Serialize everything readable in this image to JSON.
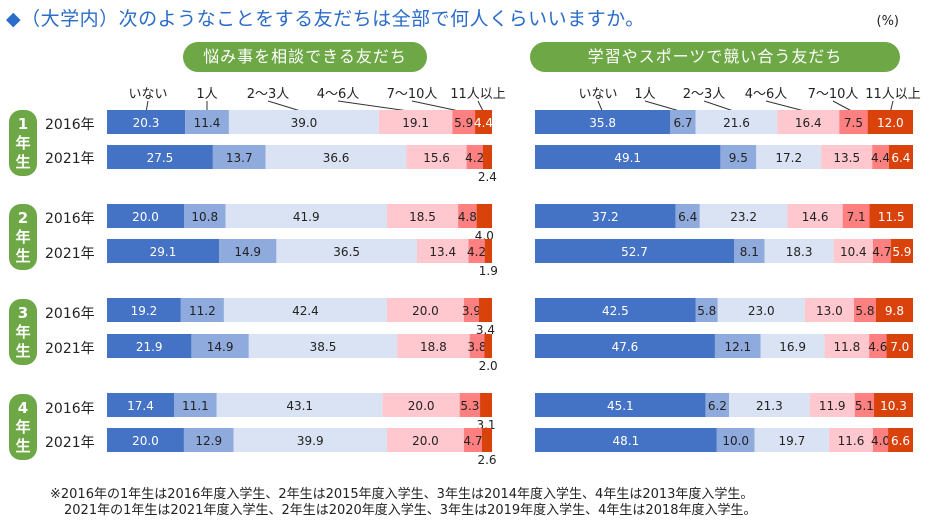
{
  "title": "◆（大学内）次のようなことをする友だちは全部で何人くらいいますか。",
  "unit": "(%)",
  "grades": [
    {
      "chars": [
        "1",
        "年",
        "生"
      ]
    },
    {
      "chars": [
        "2",
        "年",
        "生"
      ]
    },
    {
      "chars": [
        "3",
        "年",
        "生"
      ]
    },
    {
      "chars": [
        "4",
        "年",
        "生"
      ]
    }
  ],
  "years": [
    "2016年",
    "2021年"
  ],
  "category_labels": [
    "いない",
    "1人",
    "2～3人",
    "4～6人",
    "7～10人",
    "11人以上"
  ],
  "colors": [
    "#4472c4",
    "#8faadc",
    "#dae3f3",
    "#ffc7ce",
    "#ff8080",
    "#d9420b"
  ],
  "chart_data": [
    {
      "type": "bar",
      "orientation": "horizontal",
      "stacked": true,
      "title": "悩み事を相談できる友だち",
      "categories": [
        "いない",
        "1人",
        "2～3人",
        "4～6人",
        "7～10人",
        "11人以上"
      ],
      "rows": [
        {
          "grade": "1年生",
          "year": "2016年",
          "values": [
            20.3,
            11.4,
            39.0,
            19.1,
            5.9,
            4.4
          ]
        },
        {
          "grade": "1年生",
          "year": "2021年",
          "values": [
            27.5,
            13.7,
            36.6,
            15.6,
            4.2,
            2.4
          ]
        },
        {
          "grade": "2年生",
          "year": "2016年",
          "values": [
            20.0,
            10.8,
            41.9,
            18.5,
            4.8,
            4.0
          ]
        },
        {
          "grade": "2年生",
          "year": "2021年",
          "values": [
            29.1,
            14.9,
            36.5,
            13.4,
            4.2,
            1.9
          ]
        },
        {
          "grade": "3年生",
          "year": "2016年",
          "values": [
            19.2,
            11.2,
            42.4,
            20.0,
            3.9,
            3.4
          ]
        },
        {
          "grade": "3年生",
          "year": "2021年",
          "values": [
            21.9,
            14.9,
            38.5,
            18.8,
            3.8,
            2.0
          ]
        },
        {
          "grade": "4年生",
          "year": "2016年",
          "values": [
            17.4,
            11.1,
            43.1,
            20.0,
            5.3,
            3.1
          ]
        },
        {
          "grade": "4年生",
          "year": "2021年",
          "values": [
            20.0,
            12.9,
            39.9,
            20.0,
            4.7,
            2.6
          ]
        }
      ]
    },
    {
      "type": "bar",
      "orientation": "horizontal",
      "stacked": true,
      "title": "学習やスポーツで競い合う友だち",
      "categories": [
        "いない",
        "1人",
        "2～3人",
        "4～6人",
        "7～10人",
        "11人以上"
      ],
      "rows": [
        {
          "grade": "1年生",
          "year": "2016年",
          "values": [
            35.8,
            6.7,
            21.6,
            16.4,
            7.5,
            12.0
          ]
        },
        {
          "grade": "1年生",
          "year": "2021年",
          "values": [
            49.1,
            9.5,
            17.2,
            13.5,
            4.4,
            6.4
          ]
        },
        {
          "grade": "2年生",
          "year": "2016年",
          "values": [
            37.2,
            6.4,
            23.2,
            14.6,
            7.1,
            11.5
          ]
        },
        {
          "grade": "2年生",
          "year": "2021年",
          "values": [
            52.7,
            8.1,
            18.3,
            10.4,
            4.7,
            5.9
          ]
        },
        {
          "grade": "3年生",
          "year": "2016年",
          "values": [
            42.5,
            5.8,
            23.0,
            13.0,
            5.8,
            9.8
          ]
        },
        {
          "grade": "3年生",
          "year": "2021年",
          "values": [
            47.6,
            12.1,
            16.9,
            11.8,
            4.6,
            7.0
          ]
        },
        {
          "grade": "4年生",
          "year": "2016年",
          "values": [
            45.1,
            6.2,
            21.3,
            11.9,
            5.1,
            10.3
          ]
        },
        {
          "grade": "4年生",
          "year": "2021年",
          "values": [
            48.1,
            10.0,
            19.7,
            11.6,
            4.0,
            6.6
          ]
        }
      ]
    }
  ],
  "footnotes": [
    "※2016年の1年生は2016年度入学生、2年生は2015年度入学生、3年生は2014年度入学生、4年生は2013年度入学生。",
    "2021年の1年生は2021年度入学生、2年生は2020年度入学生、3年生は2019年度入学生、4年生は2018年度入学生。"
  ]
}
